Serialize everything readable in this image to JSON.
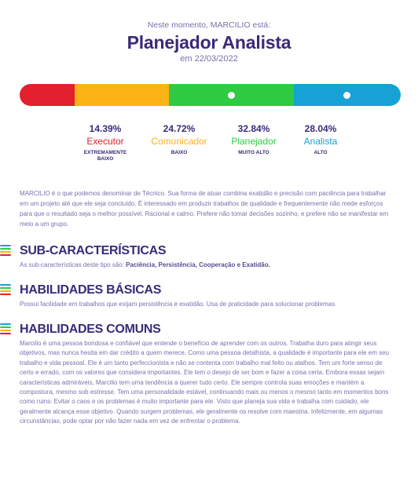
{
  "header": {
    "subtitle": "Neste momento, MARCILIO está:",
    "title": "Planejador Analista",
    "date": "em 22/03/2022"
  },
  "profiles": [
    {
      "pct": "14.39%",
      "value": 14.39,
      "name": "Executor",
      "level": "EXTREMAMENTE BAIXO",
      "color": "#e2202e",
      "marker": false
    },
    {
      "pct": "24.72%",
      "value": 24.72,
      "name": "Comunicador",
      "level": "BAIXO",
      "color": "#fbb414",
      "marker": false
    },
    {
      "pct": "32.84%",
      "value": 32.84,
      "name": "Planejador",
      "level": "MUITO ALTO",
      "color": "#2ecb43",
      "marker": true
    },
    {
      "pct": "28.04%",
      "value": 28.04,
      "name": "Analista",
      "level": "ALTO",
      "color": "#16a2d5",
      "marker": true
    }
  ],
  "intro": "MARCILIO é o que podemos denominar de Técnico. Sua forma de atuar combina exatidão e precisão com paciência para trabalhar em um projeto até que ele seja concluído. É interessado em produzir trabalhos de qualidade e frequentemente não mede esforços para que o resultado seja o melhor possível. Racional e calmo. Prefere não tomar decisões sozinho, e prefere não se manifestar em meio a um grupo.",
  "sections": {
    "sub": {
      "title": "SUB-CARACTERÍSTICAS",
      "prefix": "As sub-características deste tipo são: ",
      "items": "Paciência, Persistência, Cooperação e Exatidão."
    },
    "basic": {
      "title": "HABILIDADES BÁSICAS",
      "text": "Possui facilidade em trabalhos que exijam persistência e exatidão. Usa de praticidade para solucionar problemas."
    },
    "common": {
      "title": "HABILIDADES COMUNS",
      "text": "Marcilio é uma pessoa bondosa e confiável que entende o benefício de aprender com os outros. Trabalha duro para atingir seus objetivos, mas nunca hesita em dar crédito a quem merece. Como uma pessoa detalhista, a qualidade é importante para ele em seu trabalho e vida pessoal. Ele é um tanto perfeccionista e não se contenta com trabalho mal feito ou atalhos. Tem um forte senso de certo e errado, com os valores que considera importantes. Ele tem o desejo de ser bom e fazer a coisa certa. Embora essas sejam características admiráveis, Marcilio tem uma tendência a querer tudo certo. Ele sempre controla suas emoções e mantém a compostura, mesmo sob estresse. Tem uma personalidade estável, continuando mais ou menos o mesmo tanto em momentos bons como ruins: Evitar o caos e os problemas é muito importante para ele. Visto que planeja sua vida e trabalha com cuidado, ele geralmente alcança esse objetivo. Quando surgem problemas, ele geralmente os resolve com maestria. Infelizmente, em algumas circunstâncias, pode optar por não fazer nada em vez de enfrentar o problema."
    }
  },
  "section_icon_colors": [
    "#16a2d5",
    "#2ecb43",
    "#fbb414",
    "#e2202e"
  ]
}
